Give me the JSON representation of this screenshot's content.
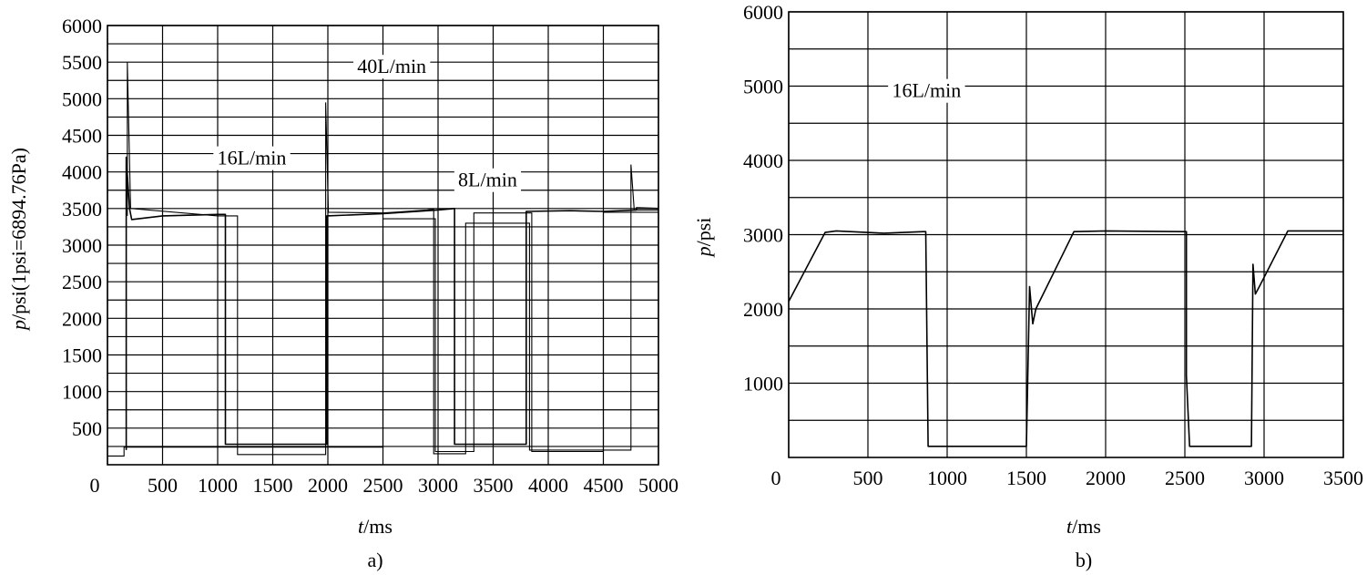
{
  "chart_data": [
    {
      "type": "line",
      "panel_label": "a)",
      "xlabel_italic": "t",
      "xlabel_rest": "/ms",
      "ylabel_italic": "p",
      "ylabel_rest": "/psi(1psi=6894.76Pa)",
      "xlim": [
        0,
        5000
      ],
      "ylim": [
        0,
        6000
      ],
      "x_ticks": [
        "0",
        "500",
        "1000",
        "1500",
        "2000",
        "2500",
        "3000",
        "3500",
        "4000",
        "4500",
        "5000"
      ],
      "x_tick_values": [
        0,
        500,
        1000,
        1500,
        2000,
        2500,
        3000,
        3500,
        4000,
        4500,
        5000
      ],
      "y_ticks": [
        "500",
        "1000",
        "1500",
        "2000",
        "2500",
        "3000",
        "3500",
        "4000",
        "4500",
        "5000",
        "5500",
        "6000"
      ],
      "y_tick_values": [
        500,
        1000,
        1500,
        2000,
        2500,
        3000,
        3500,
        4000,
        4500,
        5000,
        5500,
        6000
      ],
      "grid": true,
      "annotations": [
        {
          "text": "40L/min",
          "x": 2580,
          "y": 5350
        },
        {
          "text": "16L/min",
          "x": 1310,
          "y": 4100
        },
        {
          "text": "8L/min",
          "x": 3450,
          "y": 3800
        }
      ],
      "series": [
        {
          "style": "thin",
          "points": [
            [
              0,
              120
            ],
            [
              150,
              120
            ],
            [
              150,
              240
            ],
            [
              2500,
              240
            ],
            [
              2500,
              3360
            ],
            [
              2975,
              3360
            ],
            [
              2975,
              180
            ],
            [
              3325,
              180
            ],
            [
              3325,
              3440
            ],
            [
              3850,
              3440
            ],
            [
              3850,
              180
            ],
            [
              4500,
              180
            ],
            [
              4500,
              3450
            ],
            [
              5000,
              3450
            ]
          ]
        },
        {
          "style": "thick",
          "points": [
            [
              170,
              200
            ],
            [
              170,
              4200
            ],
            [
              200,
              3500
            ],
            [
              220,
              3350
            ],
            [
              500,
              3400
            ],
            [
              1000,
              3420
            ],
            [
              1070,
              3420
            ],
            [
              1070,
              280
            ],
            [
              1990,
              280
            ],
            [
              1990,
              3400
            ],
            [
              2500,
              3430
            ],
            [
              3000,
              3480
            ],
            [
              3150,
              3500
            ],
            [
              3150,
              280
            ],
            [
              3800,
              280
            ],
            [
              3800,
              3460
            ],
            [
              4200,
              3470
            ],
            [
              4500,
              3460
            ],
            [
              4800,
              3480
            ],
            [
              4800,
              3510
            ],
            [
              5000,
              3500
            ]
          ]
        },
        {
          "style": "thin",
          "points": [
            [
              180,
              3400
            ],
            [
              180,
              5500
            ],
            [
              210,
              3500
            ],
            [
              1000,
              3400
            ],
            [
              1180,
              3400
            ],
            [
              1180,
              140
            ],
            [
              1980,
              140
            ],
            [
              1980,
              4950
            ],
            [
              2005,
              3450
            ],
            [
              2500,
              3440
            ],
            [
              2600,
              3450
            ],
            [
              2900,
              3480
            ],
            [
              2960,
              3490
            ],
            [
              2960,
              150
            ],
            [
              3250,
              150
            ],
            [
              3250,
              3300
            ],
            [
              3830,
              3300
            ],
            [
              3830,
              200
            ],
            [
              4750,
              200
            ],
            [
              4750,
              4100
            ],
            [
              4780,
              3480
            ],
            [
              5000,
              3480
            ]
          ]
        }
      ]
    },
    {
      "type": "line",
      "panel_label": "b)",
      "xlabel_italic": "t",
      "xlabel_rest": "/ms",
      "ylabel_italic": "p",
      "ylabel_rest": "/psi",
      "xlim": [
        0,
        3500
      ],
      "ylim": [
        0,
        6000
      ],
      "x_ticks": [
        "0",
        "500",
        "1000",
        "1500",
        "2000",
        "2500",
        "3000",
        "3500"
      ],
      "x_tick_values": [
        0,
        500,
        1000,
        1500,
        2000,
        2500,
        3000,
        3500
      ],
      "y_ticks": [
        "1000",
        "2000",
        "3000",
        "4000",
        "5000",
        "6000"
      ],
      "y_tick_values": [
        1000,
        2000,
        3000,
        4000,
        5000,
        6000
      ],
      "grid_y_values": [
        500,
        1000,
        1500,
        2000,
        2500,
        3000,
        3500,
        4000,
        4500,
        5000,
        5500,
        6000
      ],
      "grid": true,
      "annotations": [
        {
          "text": "16L/min",
          "x": 870,
          "y": 4850
        }
      ],
      "series": [
        {
          "style": "thick",
          "points": [
            [
              0,
              2100
            ],
            [
              230,
              3030
            ],
            [
              300,
              3050
            ],
            [
              600,
              3020
            ],
            [
              850,
              3040
            ],
            [
              865,
              3040
            ],
            [
              880,
              150
            ],
            [
              1500,
              150
            ],
            [
              1520,
              2300
            ],
            [
              1540,
              1800
            ],
            [
              1560,
              2000
            ],
            [
              1800,
              3040
            ],
            [
              2000,
              3050
            ],
            [
              2500,
              3040
            ],
            [
              2510,
              3040
            ],
            [
              2510,
              1100
            ],
            [
              2530,
              150
            ],
            [
              2920,
              150
            ],
            [
              2930,
              2600
            ],
            [
              2945,
              2200
            ],
            [
              2970,
              2300
            ],
            [
              3150,
              3050
            ],
            [
              3500,
              3050
            ]
          ]
        }
      ]
    }
  ]
}
